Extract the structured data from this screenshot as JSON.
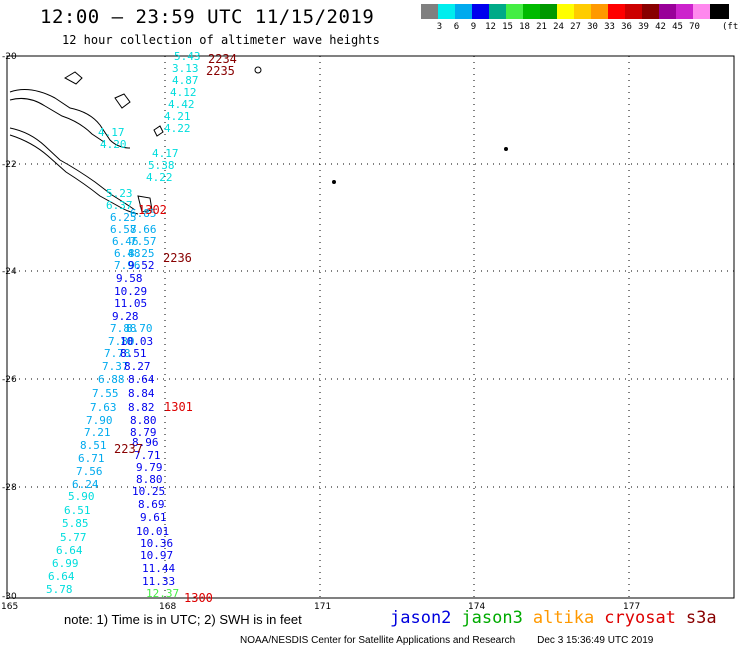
{
  "header": {
    "title": "12:00 – 23:59 UTC 11/15/2019",
    "subtitle": "12 hour collection of altimeter wave heights"
  },
  "legend": {
    "unit": "(ft)",
    "colors": [
      "#808080",
      "#00eeee",
      "#00aaee",
      "#0000ee",
      "#00aa88",
      "#44ee44",
      "#00bb00",
      "#009900",
      "#ffff00",
      "#ffcc00",
      "#ff9900",
      "#ff0000",
      "#cc0000",
      "#880000",
      "#990099",
      "#cc22cc",
      "#ff88ee",
      "#000000"
    ],
    "labels": [
      "3",
      "6",
      "9",
      "12",
      "15",
      "18",
      "21",
      "24",
      "27",
      "30",
      "33",
      "36",
      "39",
      "42",
      "45",
      "70"
    ]
  },
  "axes": {
    "lat_labels": [
      "-20",
      "-22",
      "-24",
      "-26",
      "-28",
      "-30"
    ],
    "lon_labels": [
      "165",
      "168",
      "171",
      "174",
      "177"
    ]
  },
  "times": [
    {
      "text": "2234",
      "color": "#880000"
    },
    {
      "text": "2235",
      "color": "#880000"
    },
    {
      "text": "1302",
      "color": "#dd0000"
    },
    {
      "text": "2236",
      "color": "#880000"
    },
    {
      "text": "1301",
      "color": "#dd0000"
    },
    {
      "text": "2237",
      "color": "#880000"
    },
    {
      "text": "1300",
      "color": "#dd0000"
    }
  ],
  "wave_heights": [
    {
      "v": "5.43",
      "c": "#00dddd"
    },
    {
      "v": "3.13",
      "c": "#00dddd"
    },
    {
      "v": "4.87",
      "c": "#00dddd"
    },
    {
      "v": "4.12",
      "c": "#00dddd"
    },
    {
      "v": "4.42",
      "c": "#00dddd"
    },
    {
      "v": "4.21",
      "c": "#00dddd"
    },
    {
      "v": "4.22",
      "c": "#00dddd"
    },
    {
      "v": "4.17",
      "c": "#00dddd"
    },
    {
      "v": "4.20",
      "c": "#00dddd"
    },
    {
      "v": "4.17",
      "c": "#00dddd"
    },
    {
      "v": "5.38",
      "c": "#00dddd"
    },
    {
      "v": "4.22",
      "c": "#00dddd"
    },
    {
      "v": "5.23",
      "c": "#00dddd"
    },
    {
      "v": "6.37",
      "c": "#00dddd"
    },
    {
      "v": "6.85",
      "c": "#00aaee"
    },
    {
      "v": "6.25",
      "c": "#00aaee"
    },
    {
      "v": "6.58",
      "c": "#00aaee"
    },
    {
      "v": "7.66",
      "c": "#00aaee"
    },
    {
      "v": "6.46",
      "c": "#00aaee"
    },
    {
      "v": "7.57",
      "c": "#00aaee"
    },
    {
      "v": "6.48",
      "c": "#00aaee"
    },
    {
      "v": "8.25",
      "c": "#00aaee"
    },
    {
      "v": "7.96",
      "c": "#00aaee"
    },
    {
      "v": "9.52",
      "c": "#0000ee"
    },
    {
      "v": "9.58",
      "c": "#0000ee"
    },
    {
      "v": "10.29",
      "c": "#0000ee"
    },
    {
      "v": "11.05",
      "c": "#0000ee"
    },
    {
      "v": "9.28",
      "c": "#0000ee"
    },
    {
      "v": "7.88",
      "c": "#00aaee"
    },
    {
      "v": "8.70",
      "c": "#00aaee"
    },
    {
      "v": "7.80",
      "c": "#00aaee"
    },
    {
      "v": "10.03",
      "c": "#0000ee"
    },
    {
      "v": "7.78",
      "c": "#00aaee"
    },
    {
      "v": "8.51",
      "c": "#0000ee"
    },
    {
      "v": "7.37",
      "c": "#00aaee"
    },
    {
      "v": "8.27",
      "c": "#0000ee"
    },
    {
      "v": "6.88",
      "c": "#00aaee"
    },
    {
      "v": "8.64",
      "c": "#0000ee"
    },
    {
      "v": "7.55",
      "c": "#00aaee"
    },
    {
      "v": "8.84",
      "c": "#0000ee"
    },
    {
      "v": "7.63",
      "c": "#00aaee"
    },
    {
      "v": "8.82",
      "c": "#0000ee"
    },
    {
      "v": "7.90",
      "c": "#00aaee"
    },
    {
      "v": "8.80",
      "c": "#0000ee"
    },
    {
      "v": "7.21",
      "c": "#00aaee"
    },
    {
      "v": "8.79",
      "c": "#0000ee"
    },
    {
      "v": "8.51",
      "c": "#00aaee"
    },
    {
      "v": "8.96",
      "c": "#0000ee"
    },
    {
      "v": "6.71",
      "c": "#00aaee"
    },
    {
      "v": "7.71",
      "c": "#0000ee"
    },
    {
      "v": "7.56",
      "c": "#00aaee"
    },
    {
      "v": "9.79",
      "c": "#0000ee"
    },
    {
      "v": "6.24",
      "c": "#00aaee"
    },
    {
      "v": "8.80",
      "c": "#0000ee"
    },
    {
      "v": "5.90",
      "c": "#00dddd"
    },
    {
      "v": "10.25",
      "c": "#0000ee"
    },
    {
      "v": "6.51",
      "c": "#00dddd"
    },
    {
      "v": "8.69",
      "c": "#0000ee"
    },
    {
      "v": "5.85",
      "c": "#00dddd"
    },
    {
      "v": "9.61",
      "c": "#0000ee"
    },
    {
      "v": "5.77",
      "c": "#00dddd"
    },
    {
      "v": "10.01",
      "c": "#0000ee"
    },
    {
      "v": "6.64",
      "c": "#00dddd"
    },
    {
      "v": "10.36",
      "c": "#0000ee"
    },
    {
      "v": "6.99",
      "c": "#00dddd"
    },
    {
      "v": "10.97",
      "c": "#0000ee"
    },
    {
      "v": "6.64",
      "c": "#00dddd"
    },
    {
      "v": "11.44",
      "c": "#0000ee"
    },
    {
      "v": "5.78",
      "c": "#00dddd"
    },
    {
      "v": "11.33",
      "c": "#0000ee"
    },
    {
      "v": "12.37",
      "c": "#44ee44"
    }
  ],
  "footer": {
    "note": "note: 1) Time is in UTC; 2) SWH is in feet",
    "credit": "NOAA/NESDIS Center for Satellite Applications and Research",
    "credit_date": "Dec  3 15:36:49 UTC 2019"
  },
  "satellites": [
    {
      "name": "jason2",
      "color": "#0000dd"
    },
    {
      "name": "jason3",
      "color": "#00aa00"
    },
    {
      "name": "altika",
      "color": "#ff9900"
    },
    {
      "name": "cryosat",
      "color": "#dd0000"
    },
    {
      "name": "s3a",
      "color": "#880000"
    }
  ]
}
